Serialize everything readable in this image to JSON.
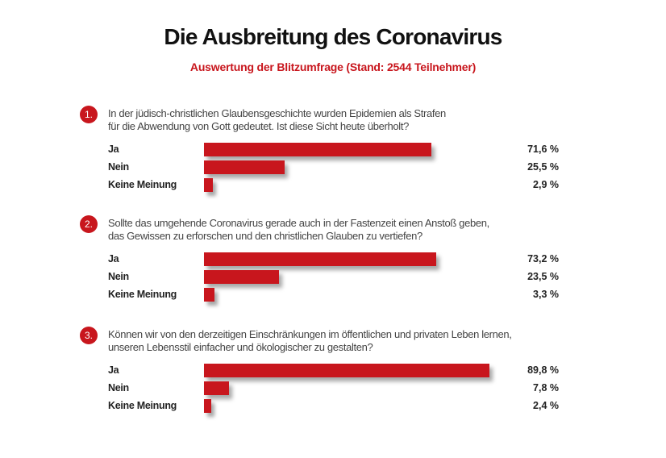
{
  "chart_data": {
    "type": "bar",
    "title": "Die Ausbreitung des Coronavirus",
    "subtitle": "Auswertung der Blitzumfrage (Stand: 2544 Teilnehmer)",
    "xlim": [
      0,
      100
    ],
    "colors": {
      "bar": "#c8161d"
    },
    "questions": [
      {
        "number": "1.",
        "text": [
          "In der jüdisch-christlichen Glaubensgeschichte wurden Epidemien als Strafen",
          "für die Abwendung von Gott gedeutet. Ist diese Sicht heute überholt?"
        ],
        "categories": [
          "Ja",
          "Nein",
          "Keine Meinung"
        ],
        "values": [
          71.6,
          25.5,
          2.9
        ],
        "labels": [
          "71,6 %",
          "25,5 %",
          "2,9 %"
        ]
      },
      {
        "number": "2.",
        "text": [
          "Sollte das umgehende Coronavirus gerade auch in der Fastenzeit einen Anstoß geben,",
          "das Gewissen zu erforschen und den christlichen Glauben zu vertiefen?"
        ],
        "categories": [
          "Ja",
          "Nein",
          "Keine Meinung"
        ],
        "values": [
          73.2,
          23.5,
          3.3
        ],
        "labels": [
          "73,2 %",
          "23,5 %",
          "3,3 %"
        ]
      },
      {
        "number": "3.",
        "text": [
          "Können wir von den derzeitigen Einschränkungen im öffentlichen und privaten Leben lernen,",
          "unseren Lebensstil einfacher und ökologischer zu gestalten?"
        ],
        "categories": [
          "Ja",
          "Nein",
          "Keine Meinung"
        ],
        "values": [
          89.8,
          7.8,
          2.4
        ],
        "labels": [
          "89,8 %",
          "7,8 %",
          "2,4 %"
        ]
      }
    ]
  }
}
